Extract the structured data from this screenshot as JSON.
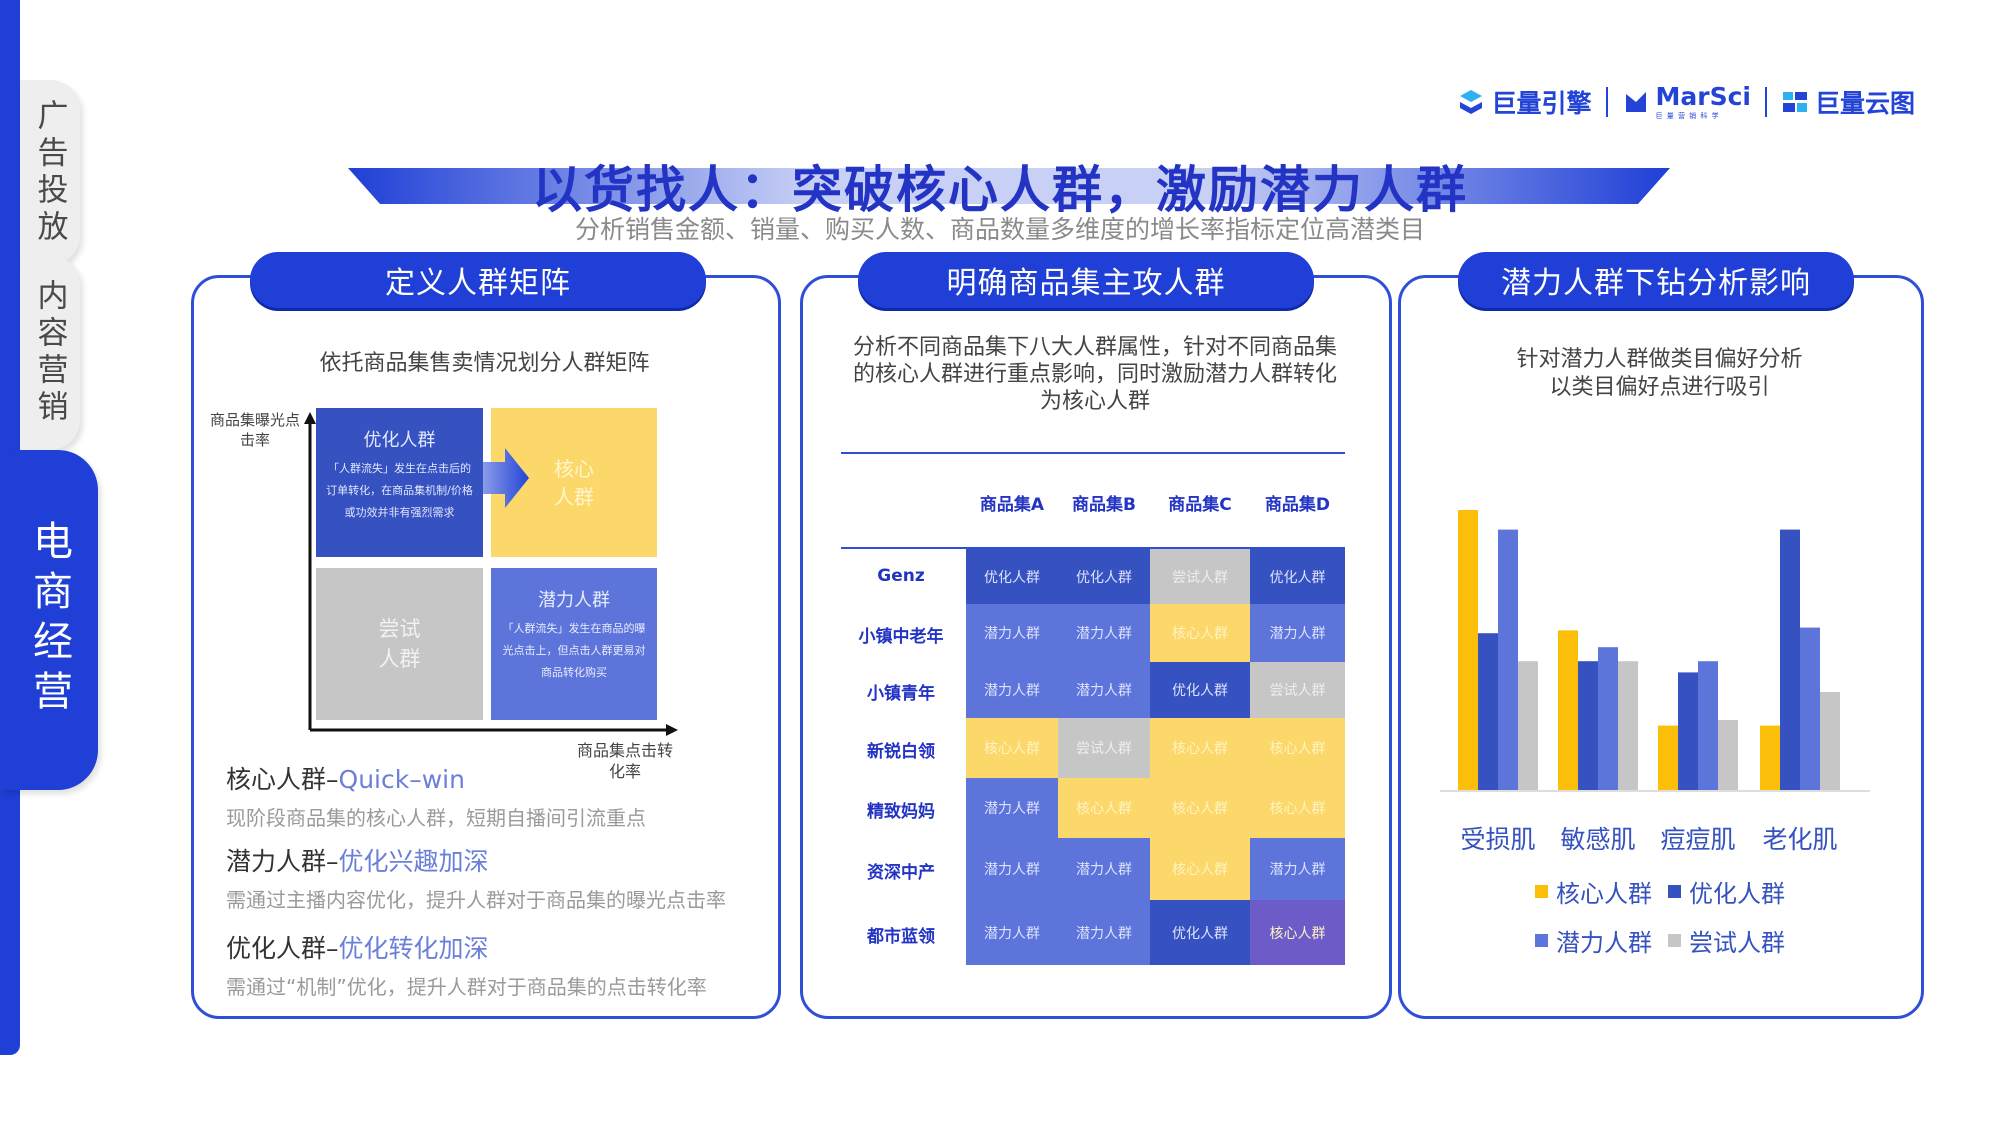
{
  "sidebar": {
    "tabs": [
      {
        "label": "广告投放"
      },
      {
        "label": "内容营销"
      },
      {
        "label": "电商经营"
      }
    ]
  },
  "logos": {
    "brand1": "巨量引擎",
    "brand2": "MarSci",
    "brand2_sub": "巨 量 营 销 科 学",
    "brand3": "巨量云图"
  },
  "header": {
    "title": "以货找人：突破核心人群，激励潜力人群",
    "subtitle": "分析销售金额、销量、购买人数、商品数量多维度的增长率指标定位高潜类目"
  },
  "panel1": {
    "pill": "定义人群矩阵",
    "desc": "依托商品集售卖情况划分人群矩阵",
    "y_axis": "商品集曝光点击率",
    "x_axis": "商品集点击转化率",
    "cells": {
      "optimize": {
        "title": "优化人群",
        "body": "「人群流失」发生在点击后的订单转化，在商品集机制/价格或功效并非有强烈需求"
      },
      "core": {
        "title": "核心人群"
      },
      "try": {
        "title": "尝试人群"
      },
      "potential": {
        "title": "潜力人群",
        "body": "「人群流失」发生在商品的曝光点击上，但点击人群更易对商品转化购买"
      }
    },
    "notes": [
      {
        "label": "核心人群–",
        "highlight": "Quick–win",
        "desc": "现阶段商品集的核心人群，短期自播间引流重点"
      },
      {
        "label": "潜力人群–",
        "highlight": "优化兴趣加深",
        "desc": "需通过主播内容优化，提升人群对于商品集的曝光点击率"
      },
      {
        "label": "优化人群–",
        "highlight": "优化转化加深",
        "desc": "需通过“机制”优化，提升人群对于商品集的点击转化率"
      }
    ]
  },
  "panel2": {
    "pill": "明确商品集主攻人群",
    "desc": "分析不同商品集下八大人群属性，针对不同商品集的核心人群进行重点影响，同时激励潜力人群转化为核心人群",
    "columns": [
      "商品集A",
      "商品集B",
      "商品集C",
      "商品集D"
    ],
    "rows": [
      {
        "label": "Genz",
        "cells": [
          "优化人群",
          "优化人群",
          "尝试人群",
          "优化人群"
        ]
      },
      {
        "label": "小镇中老年",
        "cells": [
          "潜力人群",
          "潜力人群",
          "核心人群",
          "潜力人群"
        ]
      },
      {
        "label": "小镇青年",
        "cells": [
          "潜力人群",
          "潜力人群",
          "优化人群",
          "尝试人群"
        ]
      },
      {
        "label": "新锐白领",
        "cells": [
          "核心人群",
          "尝试人群",
          "核心人群",
          "核心人群"
        ]
      },
      {
        "label": "精致妈妈",
        "cells": [
          "潜力人群",
          "核心人群",
          "核心人群",
          "核心人群"
        ]
      },
      {
        "label": "资深中产",
        "cells": [
          "潜力人群",
          "潜力人群",
          "核心人群",
          "潜力人群"
        ]
      },
      {
        "label": "都市蓝领",
        "cells": [
          "潜力人群",
          "潜力人群",
          "优化人群",
          "核心人群"
        ]
      }
    ],
    "colors": {
      "优化人群": "#3552c0",
      "潜力人群": "#5d74da",
      "核心人群": "#fcd86a",
      "尝试人群": "#c6c6c6",
      "special": "#6d5cc8"
    }
  },
  "panel3": {
    "pill": "潜力人群下钻分析影响",
    "desc_line1": "针对潜力人群做类目偏好分析",
    "desc_line2": "以类目偏好点进行吸引"
  },
  "chart_data": {
    "type": "bar",
    "categories": [
      "受损肌",
      "敏感肌",
      "痘痘肌",
      "老化肌"
    ],
    "series": [
      {
        "name": "核心人群",
        "color": "#fbbf0a",
        "values": [
          100,
          57,
          23,
          23
        ]
      },
      {
        "name": "优化人群",
        "color": "#3552c0",
        "values": [
          56,
          46,
          42,
          93
        ]
      },
      {
        "name": "潜力人群",
        "color": "#5d74da",
        "values": [
          93,
          51,
          46,
          58
        ]
      },
      {
        "name": "尝试人群",
        "color": "#c6c6c6",
        "values": [
          46,
          46,
          25,
          35
        ]
      }
    ],
    "ylim": [
      0,
      100
    ],
    "grid": false,
    "legend_position": "bottom"
  }
}
